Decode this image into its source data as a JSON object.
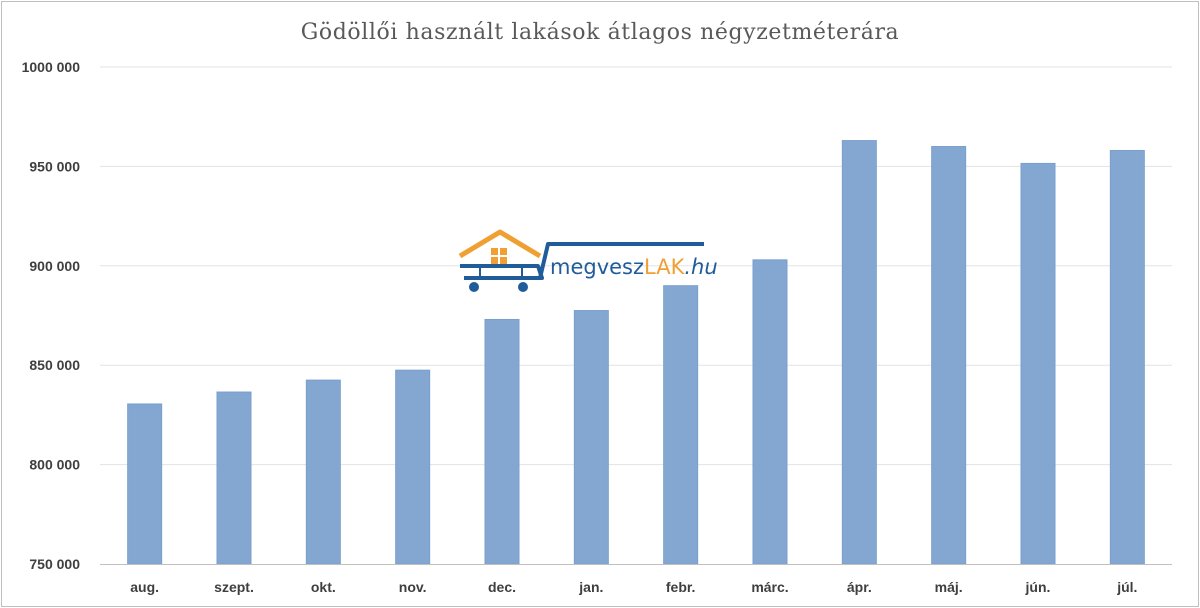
{
  "chart_data": {
    "type": "bar",
    "title": "Gödöllői használt lakások átlagos négyzetméterára",
    "xlabel": "",
    "ylabel": "",
    "categories": [
      "aug.",
      "szept.",
      "okt.",
      "nov.",
      "dec.",
      "jan.",
      "febr.",
      "márc.",
      "ápr.",
      "máj.",
      "jún.",
      "júl."
    ],
    "values": [
      830500,
      836500,
      842500,
      847500,
      873000,
      877500,
      890000,
      903000,
      963000,
      960000,
      951500,
      958000
    ],
    "ylim": [
      750000,
      1000000
    ],
    "yticks": [
      750000,
      800000,
      850000,
      900000,
      950000,
      1000000
    ],
    "ytick_labels": [
      "750 000",
      "800 000",
      "850 000",
      "900 000",
      "950 000",
      "1000 000"
    ],
    "grid": true,
    "legend": "none",
    "colors": {
      "bar": "#84a7d2",
      "bar_edge": "#7a9fcd",
      "gridline": "#e3e3e3",
      "axis": "#bfbfbf"
    }
  },
  "watermark": {
    "text_main": "megvesz",
    "text_accent": "LAK",
    "text_suffix": ".hu",
    "colors": {
      "blue": "#1f5c99",
      "orange": "#f0a033"
    }
  }
}
